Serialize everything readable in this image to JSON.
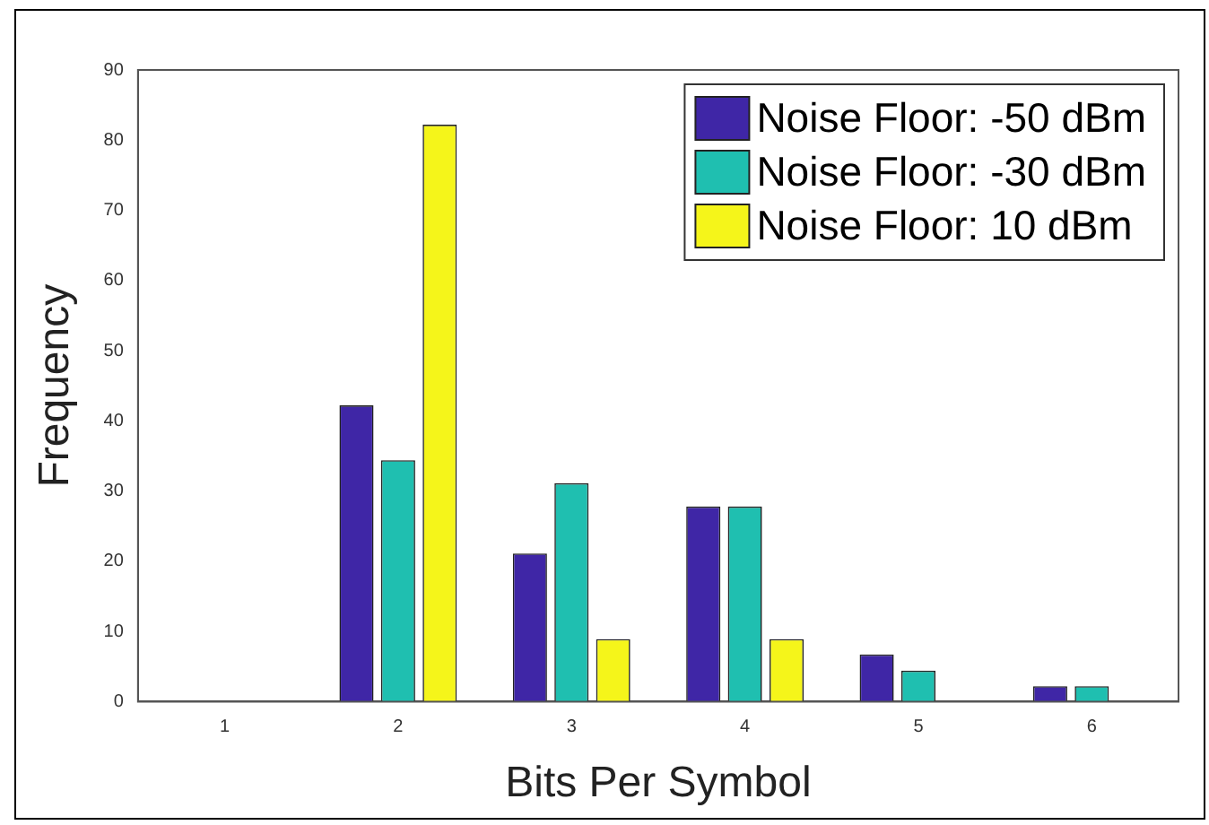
{
  "chart_data": {
    "type": "bar",
    "xlabel": "Bits Per Symbol",
    "ylabel": "Frequency",
    "categories": [
      "1",
      "2",
      "3",
      "4",
      "5",
      "6"
    ],
    "series": [
      {
        "name": "Noise Floor: -50 dBm",
        "color": "#3f26a6",
        "values": [
          0,
          42.2,
          21.1,
          27.8,
          6.7,
          2.2
        ]
      },
      {
        "name": "Noise Floor: -30 dBm",
        "color": "#1fbfb0",
        "values": [
          0,
          34.4,
          31.1,
          27.8,
          4.4,
          2.2
        ]
      },
      {
        "name": "Noise Floor: 10 dBm",
        "color": "#f5f51a",
        "values": [
          0,
          82.2,
          8.9,
          8.9,
          0,
          0
        ]
      }
    ],
    "ylim": [
      0,
      90
    ],
    "yticks": [
      0,
      10,
      20,
      30,
      40,
      50,
      60,
      70,
      80,
      90
    ],
    "grid": false,
    "legend": "top right"
  }
}
